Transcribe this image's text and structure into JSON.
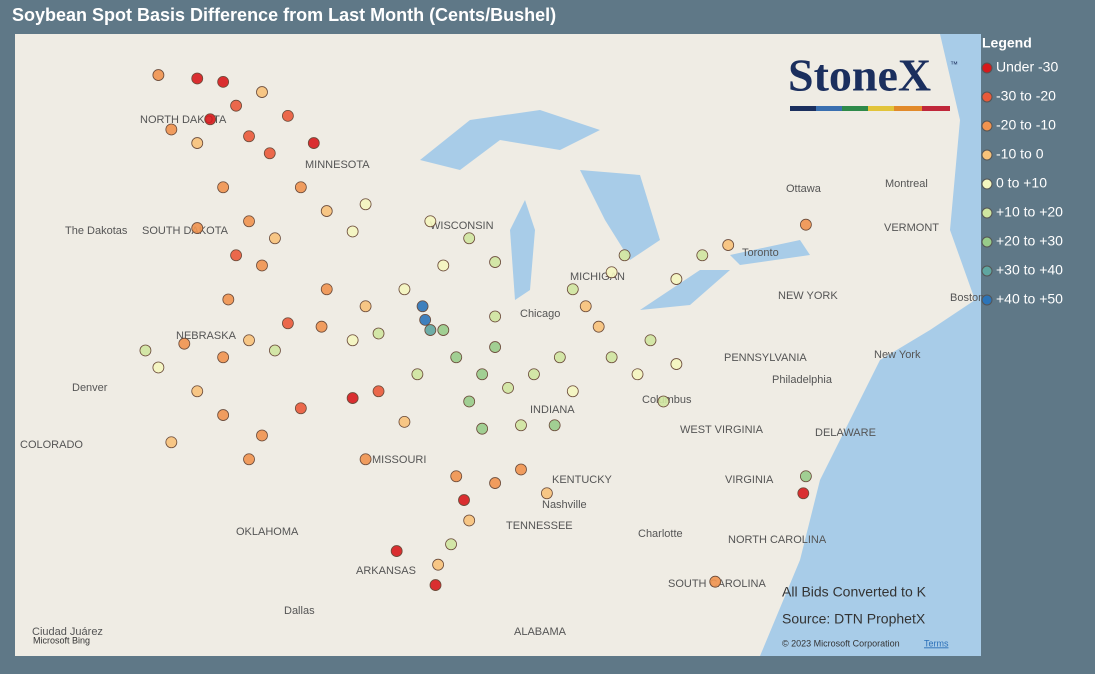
{
  "header": {
    "title": "Soybean Spot Basis Difference from Last Month (Cents/Bushel)"
  },
  "legend": {
    "title": "Legend",
    "items": [
      {
        "label": "Under -30",
        "color": "#d7191c"
      },
      {
        "label": "-30 to -20",
        "color": "#ea5a3a"
      },
      {
        "label": "-20 to -10",
        "color": "#f0934f"
      },
      {
        "label": "-10 to 0",
        "color": "#f7c27a"
      },
      {
        "label": "0 to +10",
        "color": "#f4f6bf"
      },
      {
        "label": "+10 to +20",
        "color": "#cfe6a0"
      },
      {
        "label": "+20 to +30",
        "color": "#98cc8a"
      },
      {
        "label": "+30 to +40",
        "color": "#5fa6a0"
      },
      {
        "label": "+40 to +50",
        "color": "#2b74b8"
      }
    ]
  },
  "logo": {
    "name": "StoneX",
    "mark": "™"
  },
  "map": {
    "labels": [
      "NORTH DAKOTA",
      "MINNESOTA",
      "The Dakotas",
      "SOUTH DAKOTA",
      "WISCONSIN",
      "MICHIGAN",
      "Chicago",
      "NEBRASKA",
      "Denver",
      "COLORADO",
      "MISSOURI",
      "KENTUCKY",
      "INDIANA",
      "Columbus",
      "WEST VIRGINIA",
      "VIRGINIA",
      "PENNSYLVANIA",
      "Philadelphia",
      "New York",
      "NEW YORK",
      "Ottawa",
      "Montreal",
      "VERMONT",
      "Toronto",
      "Nashville",
      "TENNESSEE",
      "Charlotte",
      "NORTH CAROLINA",
      "SOUTH CAROLINA",
      "OKLAHOMA",
      "ARKANSAS",
      "Dallas",
      "ALABAMA",
      "Boston",
      "DELAWARE",
      "Ciudad Juárez"
    ],
    "points": [
      {
        "lon": -101.5,
        "lat": 48.8,
        "class": 2
      },
      {
        "lon": -100,
        "lat": 48.7,
        "class": 0
      },
      {
        "lon": -99,
        "lat": 48.6,
        "class": 0
      },
      {
        "lon": -98.5,
        "lat": 47.9,
        "class": 1
      },
      {
        "lon": -97.5,
        "lat": 48.3,
        "class": 3
      },
      {
        "lon": -99.5,
        "lat": 47.5,
        "class": 0
      },
      {
        "lon": -98,
        "lat": 47,
        "class": 1
      },
      {
        "lon": -97.2,
        "lat": 46.5,
        "class": 1
      },
      {
        "lon": -101,
        "lat": 47.2,
        "class": 2
      },
      {
        "lon": -100,
        "lat": 46.8,
        "class": 3
      },
      {
        "lon": -99,
        "lat": 45.5,
        "class": 2
      },
      {
        "lon": -98,
        "lat": 44.5,
        "class": 2
      },
      {
        "lon": -97,
        "lat": 44,
        "class": 3
      },
      {
        "lon": -100,
        "lat": 44.3,
        "class": 2
      },
      {
        "lon": -98.5,
        "lat": 43.5,
        "class": 1
      },
      {
        "lon": -97.5,
        "lat": 43.2,
        "class": 2
      },
      {
        "lon": -96,
        "lat": 45.5,
        "class": 2
      },
      {
        "lon": -95,
        "lat": 44.8,
        "class": 3
      },
      {
        "lon": -94,
        "lat": 44.2,
        "class": 4
      },
      {
        "lon": -95.5,
        "lat": 46.8,
        "class": 0
      },
      {
        "lon": -96.5,
        "lat": 47.6,
        "class": 1
      },
      {
        "lon": -93.5,
        "lat": 45,
        "class": 4
      },
      {
        "lon": -91,
        "lat": 44.5,
        "class": 4
      },
      {
        "lon": -89.5,
        "lat": 44,
        "class": 5
      },
      {
        "lon": -88.5,
        "lat": 43.3,
        "class": 5
      },
      {
        "lon": -90.5,
        "lat": 43.2,
        "class": 4
      },
      {
        "lon": -95,
        "lat": 42.5,
        "class": 2
      },
      {
        "lon": -93.5,
        "lat": 42,
        "class": 3
      },
      {
        "lon": -92,
        "lat": 42.5,
        "class": 4
      },
      {
        "lon": -91.3,
        "lat": 42,
        "class": 8
      },
      {
        "lon": -91.2,
        "lat": 41.6,
        "class": 8
      },
      {
        "lon": -91,
        "lat": 41.3,
        "class": 7
      },
      {
        "lon": -93,
        "lat": 41.2,
        "class": 5
      },
      {
        "lon": -95.2,
        "lat": 41.4,
        "class": 2
      },
      {
        "lon": -94,
        "lat": 41,
        "class": 4
      },
      {
        "lon": -98,
        "lat": 41,
        "class": 3
      },
      {
        "lon": -97,
        "lat": 40.7,
        "class": 5
      },
      {
        "lon": -99,
        "lat": 40.5,
        "class": 2
      },
      {
        "lon": -100.5,
        "lat": 40.9,
        "class": 2
      },
      {
        "lon": -101.5,
        "lat": 40.2,
        "class": 4
      },
      {
        "lon": -96.5,
        "lat": 41.5,
        "class": 1
      },
      {
        "lon": -98.8,
        "lat": 42.2,
        "class": 2
      },
      {
        "lon": -102,
        "lat": 40.7,
        "class": 5
      },
      {
        "lon": -99,
        "lat": 38.8,
        "class": 2
      },
      {
        "lon": -97.5,
        "lat": 38.2,
        "class": 2
      },
      {
        "lon": -96,
        "lat": 39,
        "class": 1
      },
      {
        "lon": -98,
        "lat": 37.5,
        "class": 2
      },
      {
        "lon": -101,
        "lat": 38,
        "class": 3
      },
      {
        "lon": -100,
        "lat": 39.5,
        "class": 3
      },
      {
        "lon": -94,
        "lat": 39.3,
        "class": 0
      },
      {
        "lon": -93,
        "lat": 39.5,
        "class": 1
      },
      {
        "lon": -92,
        "lat": 38.6,
        "class": 3
      },
      {
        "lon": -91.5,
        "lat": 40,
        "class": 5
      },
      {
        "lon": -93.5,
        "lat": 37.5,
        "class": 2
      },
      {
        "lon": -89.7,
        "lat": 36.3,
        "class": 0
      },
      {
        "lon": -90,
        "lat": 37,
        "class": 2
      },
      {
        "lon": -90,
        "lat": 40.5,
        "class": 6
      },
      {
        "lon": -89,
        "lat": 40,
        "class": 6
      },
      {
        "lon": -88.5,
        "lat": 40.8,
        "class": 6
      },
      {
        "lon": -89.5,
        "lat": 39.2,
        "class": 6
      },
      {
        "lon": -88,
        "lat": 39.6,
        "class": 5
      },
      {
        "lon": -89,
        "lat": 38.4,
        "class": 6
      },
      {
        "lon": -90.5,
        "lat": 41.3,
        "class": 6
      },
      {
        "lon": -88.5,
        "lat": 41.7,
        "class": 5
      },
      {
        "lon": -87,
        "lat": 40,
        "class": 5
      },
      {
        "lon": -86,
        "lat": 40.5,
        "class": 5
      },
      {
        "lon": -85.5,
        "lat": 39.5,
        "class": 4
      },
      {
        "lon": -87.5,
        "lat": 38.5,
        "class": 5
      },
      {
        "lon": -86.2,
        "lat": 38.5,
        "class": 6
      },
      {
        "lon": -84,
        "lat": 40.5,
        "class": 5
      },
      {
        "lon": -83,
        "lat": 40,
        "class": 4
      },
      {
        "lon": -82.5,
        "lat": 41,
        "class": 5
      },
      {
        "lon": -84.5,
        "lat": 41.4,
        "class": 3
      },
      {
        "lon": -81.5,
        "lat": 40.3,
        "class": 4
      },
      {
        "lon": -82,
        "lat": 39.2,
        "class": 5
      },
      {
        "lon": -85.5,
        "lat": 42.5,
        "class": 5
      },
      {
        "lon": -84,
        "lat": 43,
        "class": 4
      },
      {
        "lon": -83.5,
        "lat": 43.5,
        "class": 5
      },
      {
        "lon": -85,
        "lat": 42,
        "class": 3
      },
      {
        "lon": -81.5,
        "lat": 42.8,
        "class": 4
      },
      {
        "lon": -80.5,
        "lat": 43.5,
        "class": 5
      },
      {
        "lon": -79.5,
        "lat": 43.8,
        "class": 3
      },
      {
        "lon": -76.5,
        "lat": 44.4,
        "class": 2
      },
      {
        "lon": -87.5,
        "lat": 37.2,
        "class": 2
      },
      {
        "lon": -86.5,
        "lat": 36.5,
        "class": 3
      },
      {
        "lon": -88.5,
        "lat": 36.8,
        "class": 2
      },
      {
        "lon": -89.5,
        "lat": 35.7,
        "class": 3
      },
      {
        "lon": -90.2,
        "lat": 35,
        "class": 5
      },
      {
        "lon": -90.7,
        "lat": 34.4,
        "class": 3
      },
      {
        "lon": -90.8,
        "lat": 33.8,
        "class": 0
      },
      {
        "lon": -92.3,
        "lat": 34.8,
        "class": 0
      },
      {
        "lon": -76.5,
        "lat": 37,
        "class": 6
      },
      {
        "lon": -76.6,
        "lat": 36.5,
        "class": 0
      },
      {
        "lon": -80,
        "lat": 33.9,
        "class": 2
      }
    ]
  },
  "footer": {
    "note": "All Bids Converted to K",
    "source": "Source: DTN ProphetX",
    "copyright": "© 2023 Microsoft Corporation",
    "terms": "Terms",
    "bing": "Microsoft Bing"
  }
}
